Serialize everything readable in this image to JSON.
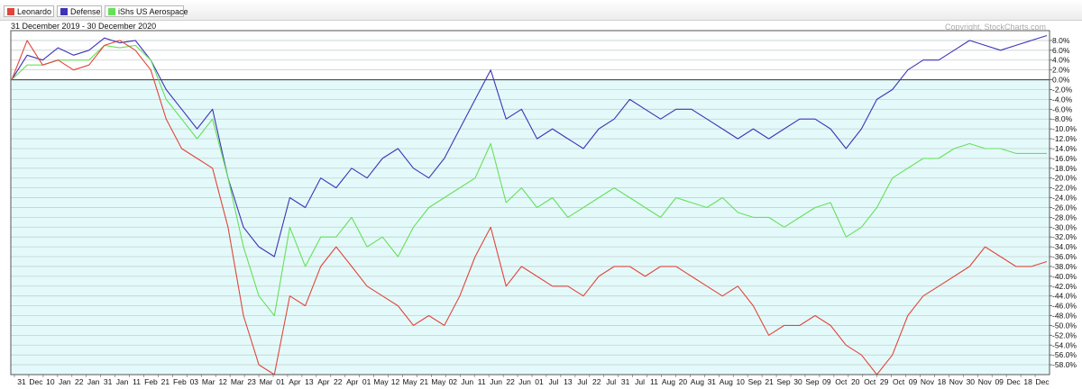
{
  "legend": [
    {
      "name": "Leonardo",
      "color": "#e0463c"
    },
    {
      "name": "Defense",
      "color": "#3f33b8"
    },
    {
      "name": "iShs US Aerospace",
      "color": "#66e05a"
    }
  ],
  "header": {
    "date_range": "31 December 2019 - 30 December 2020",
    "copyright": "Copyright, StockCharts.com"
  },
  "chart_data": {
    "type": "line",
    "title": "",
    "ylim": [
      -60,
      10
    ],
    "y_tick_step": 2,
    "y_unit": "%",
    "grid": true,
    "legend_position": "top-left",
    "zero_line": true,
    "x_labels": [
      "31",
      "Dec",
      "10",
      "Jan",
      "22",
      "Jan",
      "31",
      "Jan",
      "11",
      "Feb",
      "21",
      "Feb",
      "03",
      "Mar",
      "12",
      "Mar",
      "23",
      "Mar",
      "01",
      "Apr",
      "13",
      "Apr",
      "22",
      "Apr",
      "01",
      "May",
      "12",
      "May",
      "21",
      "May",
      "02",
      "Jun",
      "11",
      "Jun",
      "22",
      "Jun",
      "01",
      "Jul",
      "13",
      "Jul",
      "22",
      "Jul",
      "31",
      "Jul",
      "11",
      "Aug",
      "20",
      "Aug",
      "31",
      "Aug",
      "10",
      "Sep",
      "21",
      "Sep",
      "30",
      "Sep",
      "09",
      "Oct",
      "20",
      "Oct",
      "29",
      "Oct",
      "09",
      "Nov",
      "18",
      "Nov",
      "30",
      "Nov",
      "09",
      "Dec",
      "18",
      "Dec"
    ],
    "series": [
      {
        "name": "Defense",
        "color": "#3f33b8",
        "values": [
          0.0,
          5.0,
          4.0,
          6.5,
          5.0,
          6.0,
          8.5,
          7.5,
          8.0,
          4.0,
          -2.0,
          -6.0,
          -10.0,
          -6.0,
          -20.0,
          -30.0,
          -34.0,
          -36.0,
          -24.0,
          -26.0,
          -20.0,
          -22.0,
          -18.0,
          -20.0,
          -16.0,
          -14.0,
          -18.0,
          -20.0,
          -16.0,
          -10.0,
          -4.0,
          2.0,
          -8.0,
          -6.0,
          -12.0,
          -10.0,
          -12.0,
          -14.0,
          -10.0,
          -8.0,
          -4.0,
          -6.0,
          -8.0,
          -6.0,
          -6.0,
          -8.0,
          -10.0,
          -12.0,
          -10.0,
          -12.0,
          -10.0,
          -8.0,
          -8.0,
          -10.0,
          -14.0,
          -10.0,
          -4.0,
          -2.0,
          2.0,
          4.0,
          4.0,
          6.0,
          8.0,
          7.0,
          6.0,
          7.0,
          8.0,
          9.0
        ]
      },
      {
        "name": "iShs US Aerospace",
        "color": "#66e05a",
        "values": [
          0.0,
          3.0,
          3.0,
          4.0,
          4.0,
          4.0,
          7.0,
          6.5,
          7.0,
          4.0,
          -4.0,
          -8.0,
          -12.0,
          -8.0,
          -20.0,
          -34.0,
          -44.0,
          -48.0,
          -30.0,
          -38.0,
          -32.0,
          -32.0,
          -28.0,
          -34.0,
          -32.0,
          -36.0,
          -30.0,
          -26.0,
          -24.0,
          -22.0,
          -20.0,
          -13.0,
          -25.0,
          -22.0,
          -26.0,
          -24.0,
          -28.0,
          -26.0,
          -24.0,
          -22.0,
          -24.0,
          -26.0,
          -28.0,
          -24.0,
          -25.0,
          -26.0,
          -24.0,
          -27.0,
          -28.0,
          -28.0,
          -30.0,
          -28.0,
          -26.0,
          -25.0,
          -32.0,
          -30.0,
          -26.0,
          -20.0,
          -18.0,
          -16.0,
          -16.0,
          -14.0,
          -13.0,
          -14.0,
          -14.0,
          -15.0,
          -15.0,
          -15.0
        ]
      },
      {
        "name": "Leonardo",
        "color": "#e0463c",
        "values": [
          0.0,
          8.0,
          3.0,
          4.0,
          2.0,
          3.0,
          7.0,
          8.0,
          6.0,
          2.0,
          -8.0,
          -14.0,
          -16.0,
          -18.0,
          -30.0,
          -48.0,
          -58.0,
          -60.0,
          -44.0,
          -46.0,
          -38.0,
          -34.0,
          -38.0,
          -42.0,
          -44.0,
          -46.0,
          -50.0,
          -48.0,
          -50.0,
          -44.0,
          -36.0,
          -30.0,
          -42.0,
          -38.0,
          -40.0,
          -42.0,
          -42.0,
          -44.0,
          -40.0,
          -38.0,
          -38.0,
          -40.0,
          -38.0,
          -38.0,
          -40.0,
          -42.0,
          -44.0,
          -42.0,
          -46.0,
          -52.0,
          -50.0,
          -50.0,
          -48.0,
          -50.0,
          -54.0,
          -56.0,
          -60.0,
          -56.0,
          -48.0,
          -44.0,
          -42.0,
          -40.0,
          -38.0,
          -34.0,
          -36.0,
          -38.0,
          -38.0,
          -37.0
        ]
      }
    ]
  }
}
